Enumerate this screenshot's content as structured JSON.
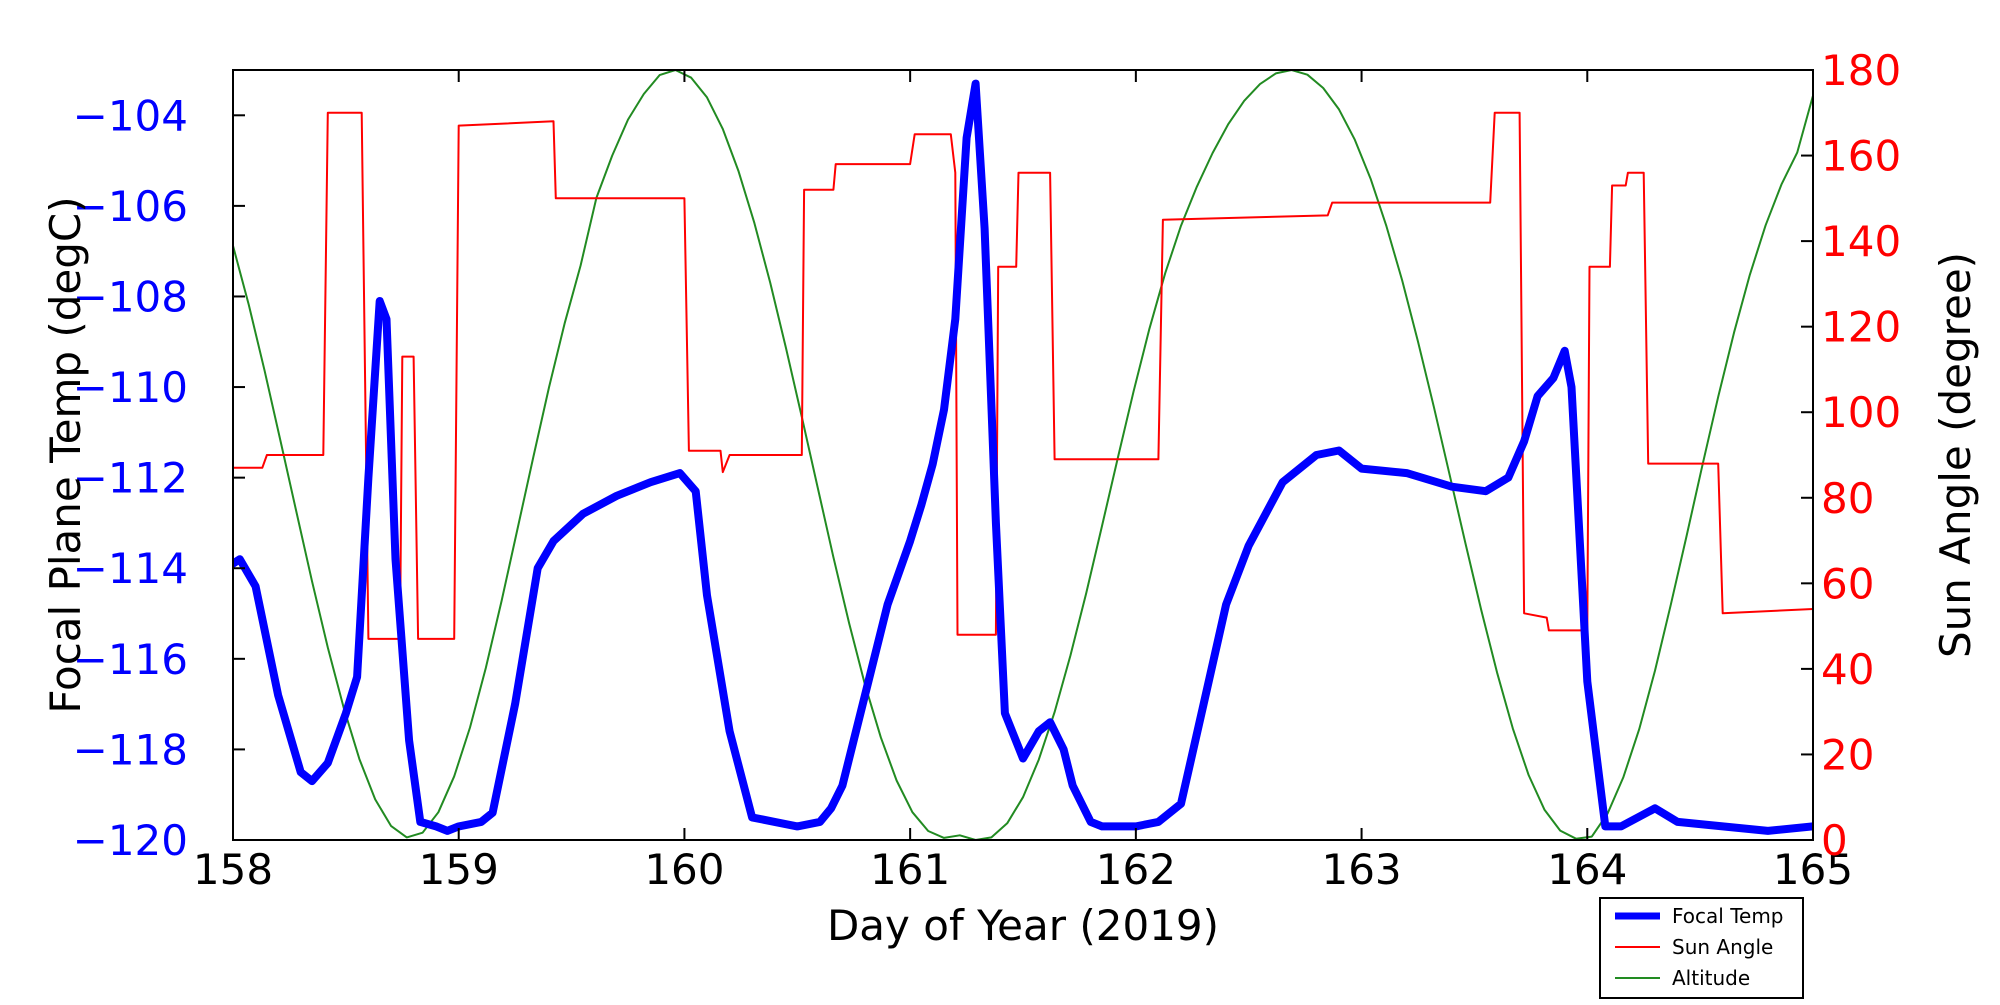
{
  "chart_data": {
    "type": "line",
    "xlabel": "Day of Year (2019)",
    "ylabel_left": "Focal Plane Temp (degC)",
    "ylabel_right": "Sun Angle (degree)",
    "xlim": [
      158,
      165
    ],
    "ylim_left": [
      -120,
      -103
    ],
    "ylim_right": [
      0,
      180
    ],
    "x_ticks": [
      158,
      159,
      160,
      161,
      162,
      163,
      164,
      165
    ],
    "y_ticks_left": [
      -120,
      -118,
      -116,
      -114,
      -112,
      -110,
      -108,
      -106,
      -104
    ],
    "y_ticks_right": [
      0,
      20,
      40,
      60,
      80,
      100,
      120,
      140,
      160,
      180
    ],
    "colors": {
      "focal_temp": "#0000ff",
      "sun_angle": "#ff0000",
      "altitude": "#228b22",
      "axis": "#000000",
      "left_ticks": "#0000ff",
      "right_ticks": "#ff0000"
    },
    "legend": {
      "position": "bottom-right",
      "entries": [
        "Focal Temp",
        "Sun Angle",
        "Altitude"
      ]
    },
    "series": [
      {
        "name": "Focal Temp",
        "axis": "left",
        "x": [
          158.0,
          158.03,
          158.1,
          158.2,
          158.3,
          158.35,
          158.42,
          158.5,
          158.55,
          158.6,
          158.65,
          158.68,
          158.72,
          158.78,
          158.83,
          158.9,
          158.95,
          159.0,
          159.1,
          159.15,
          159.25,
          159.35,
          159.42,
          159.55,
          159.7,
          159.85,
          159.98,
          160.05,
          160.1,
          160.2,
          160.3,
          160.4,
          160.5,
          160.6,
          160.65,
          160.7,
          160.8,
          160.9,
          161.0,
          161.05,
          161.1,
          161.15,
          161.2,
          161.25,
          161.29,
          161.33,
          161.38,
          161.42,
          161.5,
          161.57,
          161.62,
          161.68,
          161.72,
          161.8,
          161.85,
          162.0,
          162.1,
          162.2,
          162.3,
          162.4,
          162.5,
          162.65,
          162.8,
          162.9,
          163.0,
          163.2,
          163.4,
          163.55,
          163.65,
          163.72,
          163.78,
          163.85,
          163.9,
          163.93,
          164.0,
          164.08,
          164.15,
          164.3,
          164.4,
          164.6,
          164.8,
          165.0
        ],
        "values": [
          -113.9,
          -113.8,
          -114.4,
          -116.8,
          -118.5,
          -118.7,
          -118.3,
          -117.2,
          -116.4,
          -112.0,
          -108.1,
          -108.5,
          -113.8,
          -117.8,
          -119.6,
          -119.7,
          -119.8,
          -119.7,
          -119.6,
          -119.4,
          -117.0,
          -114.0,
          -113.4,
          -112.8,
          -112.4,
          -112.1,
          -111.9,
          -112.3,
          -114.6,
          -117.6,
          -119.5,
          -119.6,
          -119.7,
          -119.6,
          -119.3,
          -118.8,
          -116.8,
          -114.8,
          -113.4,
          -112.6,
          -111.7,
          -110.5,
          -108.5,
          -104.5,
          -103.3,
          -106.5,
          -113.0,
          -117.2,
          -118.2,
          -117.6,
          -117.4,
          -118.0,
          -118.8,
          -119.6,
          -119.7,
          -119.7,
          -119.6,
          -119.2,
          -117.0,
          -114.8,
          -113.5,
          -112.1,
          -111.5,
          -111.4,
          -111.8,
          -111.9,
          -112.2,
          -112.3,
          -112.0,
          -111.2,
          -110.2,
          -109.8,
          -109.2,
          -110.0,
          -116.5,
          -119.7,
          -119.7,
          -119.3,
          -119.6,
          -119.7,
          -119.8,
          -119.7
        ]
      },
      {
        "name": "Sun Angle",
        "axis": "right",
        "x": [
          158.0,
          158.13,
          158.15,
          158.4,
          158.42,
          158.57,
          158.6,
          158.74,
          158.75,
          158.8,
          158.82,
          158.86,
          158.9,
          158.98,
          159.0,
          159.42,
          159.43,
          160.0,
          160.02,
          160.16,
          160.17,
          160.2,
          160.52,
          160.53,
          160.66,
          160.67,
          161.0,
          161.02,
          161.18,
          161.2,
          161.21,
          161.23,
          161.25,
          161.38,
          161.39,
          161.47,
          161.48,
          161.62,
          161.64,
          162.1,
          162.12,
          162.85,
          162.87,
          163.57,
          163.59,
          163.7,
          163.72,
          163.82,
          163.83,
          163.98,
          164.0,
          164.01,
          164.1,
          164.11,
          164.17,
          164.18,
          164.25,
          164.27,
          164.42,
          164.44,
          164.58,
          164.6,
          165.0
        ],
        "values": [
          87,
          87,
          90,
          90,
          170,
          170,
          47,
          47,
          113,
          113,
          47,
          47,
          47,
          47,
          167,
          168,
          150,
          150,
          91,
          91,
          86,
          90,
          90,
          152,
          152,
          158,
          158,
          165,
          165,
          156,
          48,
          48,
          48,
          48,
          134,
          134,
          156,
          156,
          89,
          89,
          145,
          146,
          149,
          149,
          170,
          170,
          53,
          52,
          49,
          49,
          49,
          134,
          134,
          153,
          153,
          156,
          156,
          88,
          88,
          88,
          88,
          53,
          54
        ]
      },
      {
        "name": "Altitude",
        "axis": "right",
        "x": [
          158.0,
          158.07,
          158.14,
          158.21,
          158.28,
          158.35,
          158.42,
          158.49,
          158.56,
          158.63,
          158.7,
          158.77,
          158.84,
          158.91,
          158.98,
          159.05,
          159.12,
          159.19,
          159.26,
          159.33,
          159.4,
          159.47,
          159.54,
          159.61,
          159.68,
          159.75,
          159.82,
          159.89,
          159.96,
          160.03,
          160.1,
          160.17,
          160.24,
          160.31,
          160.38,
          160.45,
          160.52,
          160.59,
          160.66,
          160.73,
          160.8,
          160.87,
          160.94,
          161.01,
          161.08,
          161.15,
          161.22,
          161.29,
          161.36,
          161.43,
          161.5,
          161.57,
          161.64,
          161.71,
          161.78,
          161.85,
          161.92,
          161.99,
          162.06,
          162.13,
          162.2,
          162.27,
          162.34,
          162.41,
          162.48,
          162.55,
          162.62,
          162.69,
          162.76,
          162.83,
          162.9,
          162.97,
          163.04,
          163.11,
          163.18,
          163.25,
          163.32,
          163.39,
          163.46,
          163.53,
          163.6,
          163.67,
          163.74,
          163.81,
          163.88,
          163.95,
          164.02,
          164.09,
          164.16,
          164.23,
          164.3,
          164.37,
          164.44,
          164.51,
          164.58,
          164.65,
          164.72,
          164.79,
          164.86,
          164.93,
          165.0
        ],
        "values": [
          138.9,
          125.1,
          109.7,
          93.4,
          76.9,
          60.5,
          45.0,
          31.0,
          18.9,
          9.5,
          3.3,
          0.6,
          1.7,
          6.5,
          14.9,
          26.3,
          40.2,
          55.9,
          72.6,
          89.4,
          105.8,
          120.9,
          134.3,
          150.1,
          160.0,
          168.4,
          174.4,
          178.8,
          180.0,
          178.2,
          173.6,
          166.2,
          156.3,
          144.2,
          130.3,
          115.0,
          98.9,
          82.5,
          66.1,
          50.6,
          36.3,
          24.0,
          13.9,
          6.5,
          2.1,
          0.5,
          1.1,
          0.0,
          0.6,
          3.9,
          10.0,
          18.8,
          29.9,
          43.1,
          57.7,
          73.4,
          89.3,
          104.9,
          119.5,
          132.5,
          143.6,
          152.7,
          160.6,
          167.4,
          172.8,
          176.7,
          179.2,
          180.0,
          178.9,
          175.8,
          170.8,
          163.7,
          154.6,
          143.5,
          130.8,
          116.5,
          101.3,
          85.4,
          69.4,
          53.8,
          39.2,
          26.1,
          15.2,
          7.1,
          2.2,
          0.3,
          0.8,
          6.2,
          14.7,
          25.9,
          39.6,
          55.0,
          71.1,
          87.6,
          103.6,
          118.6,
          132.1,
          143.7,
          153.2,
          160.7,
          174.0
        ]
      }
    ]
  }
}
